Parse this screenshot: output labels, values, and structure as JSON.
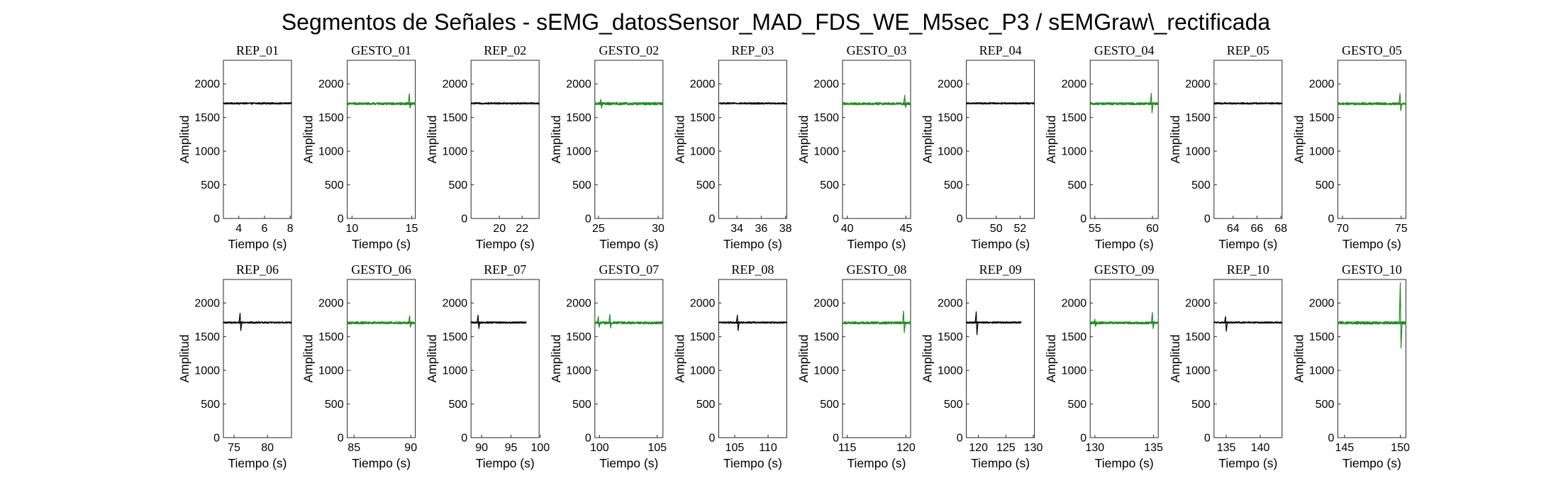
{
  "figure": {
    "title": "Segmentos de Señales - sEMG_datosSensor_MAD_FDS_WE_M5sec_P3 / sEMGraw\\_rectificada"
  },
  "colors": {
    "rep": "#000000",
    "gesto": "#228b22",
    "axes": "#262626"
  },
  "chart_data": [
    {
      "type": "line",
      "title": "REP_01",
      "xlabel": "Tiempo (s)",
      "ylabel": "Amplitud",
      "xlim": [
        2.8,
        8.1
      ],
      "ylim": [
        0,
        2350
      ],
      "xticks": [
        4,
        6,
        8
      ],
      "yticks": [
        0,
        500,
        1000,
        1500,
        2000
      ],
      "signal_kind": "rep",
      "signal_x_range": [
        2.8,
        8.1
      ],
      "baseline": 1710,
      "noise": 12,
      "spikes": []
    },
    {
      "type": "line",
      "title": "GESTO_01",
      "xlabel": "Tiempo (s)",
      "ylabel": "Amplitud",
      "xlim": [
        9.6,
        15.3
      ],
      "ylim": [
        0,
        2350
      ],
      "xticks": [
        10,
        15
      ],
      "yticks": [
        0,
        500,
        1000,
        1500,
        2000
      ],
      "signal_kind": "gesto",
      "signal_x_range": [
        9.6,
        15.3
      ],
      "baseline": 1705,
      "noise": 18,
      "spikes": [
        {
          "x": 14.8,
          "max": 1855,
          "min": 1640
        }
      ]
    },
    {
      "type": "line",
      "title": "REP_02",
      "xlabel": "Tiempo (s)",
      "ylabel": "Amplitud",
      "xlim": [
        17.5,
        23.5
      ],
      "ylim": [
        0,
        2350
      ],
      "xticks": [
        20,
        22
      ],
      "yticks": [
        0,
        500,
        1000,
        1500,
        2000
      ],
      "signal_kind": "rep",
      "signal_x_range": [
        17.5,
        23.5
      ],
      "baseline": 1710,
      "noise": 12,
      "spikes": []
    },
    {
      "type": "line",
      "title": "GESTO_02",
      "xlabel": "Tiempo (s)",
      "ylabel": "Amplitud",
      "xlim": [
        24.7,
        30.4
      ],
      "ylim": [
        0,
        2350
      ],
      "xticks": [
        25,
        30
      ],
      "yticks": [
        0,
        500,
        1000,
        1500,
        2000
      ],
      "signal_kind": "gesto",
      "signal_x_range": [
        24.7,
        30.4
      ],
      "baseline": 1705,
      "noise": 20,
      "spikes": [
        {
          "x": 25.2,
          "max": 1770,
          "min": 1640
        }
      ]
    },
    {
      "type": "line",
      "title": "REP_03",
      "xlabel": "Tiempo (s)",
      "ylabel": "Amplitud",
      "xlim": [
        32.5,
        38.1
      ],
      "ylim": [
        0,
        2350
      ],
      "xticks": [
        34,
        36,
        38
      ],
      "yticks": [
        0,
        500,
        1000,
        1500,
        2000
      ],
      "signal_kind": "rep",
      "signal_x_range": [
        32.5,
        38.1
      ],
      "baseline": 1710,
      "noise": 12,
      "spikes": []
    },
    {
      "type": "line",
      "title": "GESTO_03",
      "xlabel": "Tiempo (s)",
      "ylabel": "Amplitud",
      "xlim": [
        39.6,
        45.4
      ],
      "ylim": [
        0,
        2350
      ],
      "xticks": [
        40,
        45
      ],
      "yticks": [
        0,
        500,
        1000,
        1500,
        2000
      ],
      "signal_kind": "gesto",
      "signal_x_range": [
        39.6,
        45.4
      ],
      "baseline": 1705,
      "noise": 18,
      "spikes": [
        {
          "x": 44.9,
          "max": 1830,
          "min": 1650
        }
      ]
    },
    {
      "type": "line",
      "title": "REP_04",
      "xlabel": "Tiempo (s)",
      "ylabel": "Amplitud",
      "xlim": [
        47.5,
        53.2
      ],
      "ylim": [
        0,
        2350
      ],
      "xticks": [
        50,
        52
      ],
      "yticks": [
        0,
        500,
        1000,
        1500,
        2000
      ],
      "signal_kind": "rep",
      "signal_x_range": [
        47.5,
        53.2
      ],
      "baseline": 1710,
      "noise": 12,
      "spikes": []
    },
    {
      "type": "line",
      "title": "GESTO_04",
      "xlabel": "Tiempo (s)",
      "ylabel": "Amplitud",
      "xlim": [
        54.6,
        60.5
      ],
      "ylim": [
        0,
        2350
      ],
      "xticks": [
        55,
        60
      ],
      "yticks": [
        0,
        500,
        1000,
        1500,
        2000
      ],
      "signal_kind": "gesto",
      "signal_x_range": [
        54.6,
        60.5
      ],
      "baseline": 1705,
      "noise": 18,
      "spikes": [
        {
          "x": 59.9,
          "max": 1860,
          "min": 1570
        }
      ]
    },
    {
      "type": "line",
      "title": "REP_05",
      "xlabel": "Tiempo (s)",
      "ylabel": "Amplitud",
      "xlim": [
        62.4,
        68.1
      ],
      "ylim": [
        0,
        2350
      ],
      "xticks": [
        64,
        66,
        68
      ],
      "yticks": [
        0,
        500,
        1000,
        1500,
        2000
      ],
      "signal_kind": "rep",
      "signal_x_range": [
        62.4,
        68.1
      ],
      "baseline": 1710,
      "noise": 12,
      "spikes": []
    },
    {
      "type": "line",
      "title": "GESTO_05",
      "xlabel": "Tiempo (s)",
      "ylabel": "Amplitud",
      "xlim": [
        69.6,
        75.4
      ],
      "ylim": [
        0,
        2350
      ],
      "xticks": [
        70,
        75
      ],
      "yticks": [
        0,
        500,
        1000,
        1500,
        2000
      ],
      "signal_kind": "gesto",
      "signal_x_range": [
        69.6,
        75.4
      ],
      "baseline": 1705,
      "noise": 18,
      "spikes": [
        {
          "x": 74.9,
          "max": 1860,
          "min": 1600
        }
      ]
    },
    {
      "type": "line",
      "title": "REP_06",
      "xlabel": "Tiempo (s)",
      "ylabel": "Amplitud",
      "xlim": [
        73.4,
        83.6
      ],
      "ylim": [
        0,
        2350
      ],
      "xticks": [
        75,
        80
      ],
      "yticks": [
        0,
        500,
        1000,
        1500,
        2000
      ],
      "signal_kind": "rep",
      "signal_x_range": [
        73.4,
        83.6
      ],
      "baseline": 1710,
      "noise": 12,
      "spikes": [
        {
          "x": 75.9,
          "max": 1850,
          "min": 1590
        }
      ]
    },
    {
      "type": "line",
      "title": "GESTO_06",
      "xlabel": "Tiempo (s)",
      "ylabel": "Amplitud",
      "xlim": [
        84.4,
        90.4
      ],
      "ylim": [
        0,
        2350
      ],
      "xticks": [
        85,
        90
      ],
      "yticks": [
        0,
        500,
        1000,
        1500,
        2000
      ],
      "signal_kind": "gesto",
      "signal_x_range": [
        84.4,
        90.4
      ],
      "baseline": 1705,
      "noise": 18,
      "spikes": [
        {
          "x": 89.9,
          "max": 1810,
          "min": 1640
        }
      ]
    },
    {
      "type": "line",
      "title": "REP_07",
      "xlabel": "Tiempo (s)",
      "ylabel": "Amplitud",
      "xlim": [
        88.2,
        99.8
      ],
      "ylim": [
        0,
        2350
      ],
      "xticks": [
        90,
        95,
        100
      ],
      "yticks": [
        0,
        500,
        1000,
        1500,
        2000
      ],
      "signal_kind": "rep",
      "signal_x_range": [
        88.2,
        97.6
      ],
      "baseline": 1710,
      "noise": 12,
      "spikes": [
        {
          "x": 89.4,
          "max": 1820,
          "min": 1620
        }
      ]
    },
    {
      "type": "line",
      "title": "GESTO_07",
      "xlabel": "Tiempo (s)",
      "ylabel": "Amplitud",
      "xlim": [
        99.6,
        105.5
      ],
      "ylim": [
        0,
        2350
      ],
      "xticks": [
        100,
        105
      ],
      "yticks": [
        0,
        500,
        1000,
        1500,
        2000
      ],
      "signal_kind": "gesto",
      "signal_x_range": [
        99.6,
        105.5
      ],
      "baseline": 1705,
      "noise": 18,
      "spikes": [
        {
          "x": 99.9,
          "max": 1800,
          "min": 1640
        },
        {
          "x": 100.9,
          "max": 1830,
          "min": 1630
        }
      ]
    },
    {
      "type": "line",
      "title": "REP_08",
      "xlabel": "Tiempo (s)",
      "ylabel": "Amplitud",
      "xlim": [
        102.6,
        112.8
      ],
      "ylim": [
        0,
        2350
      ],
      "xticks": [
        105,
        110
      ],
      "yticks": [
        0,
        500,
        1000,
        1500,
        2000
      ],
      "signal_kind": "rep",
      "signal_x_range": [
        102.6,
        112.8
      ],
      "baseline": 1710,
      "noise": 12,
      "spikes": [
        {
          "x": 105.4,
          "max": 1820,
          "min": 1590
        }
      ]
    },
    {
      "type": "line",
      "title": "GESTO_08",
      "xlabel": "Tiempo (s)",
      "ylabel": "Amplitud",
      "xlim": [
        114.6,
        120.4
      ],
      "ylim": [
        0,
        2350
      ],
      "xticks": [
        115,
        120
      ],
      "yticks": [
        0,
        500,
        1000,
        1500,
        2000
      ],
      "signal_kind": "gesto",
      "signal_x_range": [
        114.6,
        120.4
      ],
      "baseline": 1705,
      "noise": 18,
      "spikes": [
        {
          "x": 119.8,
          "max": 1880,
          "min": 1560
        }
      ]
    },
    {
      "type": "line",
      "title": "REP_09",
      "xlabel": "Tiempo (s)",
      "ylabel": "Amplitud",
      "xlim": [
        117.8,
        130.2
      ],
      "ylim": [
        0,
        2350
      ],
      "xticks": [
        120,
        125,
        130
      ],
      "yticks": [
        0,
        500,
        1000,
        1500,
        2000
      ],
      "signal_kind": "rep",
      "signal_x_range": [
        117.8,
        127.8
      ],
      "baseline": 1710,
      "noise": 12,
      "spikes": [
        {
          "x": 119.6,
          "max": 1870,
          "min": 1530
        }
      ]
    },
    {
      "type": "line",
      "title": "GESTO_09",
      "xlabel": "Tiempo (s)",
      "ylabel": "Amplitud",
      "xlim": [
        129.6,
        135.4
      ],
      "ylim": [
        0,
        2350
      ],
      "xticks": [
        130,
        135
      ],
      "yticks": [
        0,
        500,
        1000,
        1500,
        2000
      ],
      "signal_kind": "gesto",
      "signal_x_range": [
        129.6,
        135.4
      ],
      "baseline": 1705,
      "noise": 18,
      "spikes": [
        {
          "x": 130.0,
          "max": 1760,
          "min": 1650
        },
        {
          "x": 134.9,
          "max": 1860,
          "min": 1620
        }
      ]
    },
    {
      "type": "line",
      "title": "REP_10",
      "xlabel": "Tiempo (s)",
      "ylabel": "Amplitud",
      "xlim": [
        133.2,
        143.2
      ],
      "ylim": [
        0,
        2350
      ],
      "xticks": [
        135,
        140
      ],
      "yticks": [
        0,
        500,
        1000,
        1500,
        2000
      ],
      "signal_kind": "rep",
      "signal_x_range": [
        133.2,
        143.2
      ],
      "baseline": 1710,
      "noise": 12,
      "spikes": [
        {
          "x": 134.9,
          "max": 1800,
          "min": 1580
        }
      ]
    },
    {
      "type": "line",
      "title": "GESTO_10",
      "xlabel": "Tiempo (s)",
      "ylabel": "Amplitud",
      "xlim": [
        144.4,
        150.5
      ],
      "ylim": [
        0,
        2350
      ],
      "xticks": [
        145,
        150
      ],
      "yticks": [
        0,
        500,
        1000,
        1500,
        2000
      ],
      "signal_kind": "gesto",
      "signal_x_range": [
        144.4,
        150.5
      ],
      "baseline": 1705,
      "noise": 22,
      "spikes": [
        {
          "x": 150.0,
          "max": 2300,
          "min": 1330
        }
      ]
    }
  ]
}
